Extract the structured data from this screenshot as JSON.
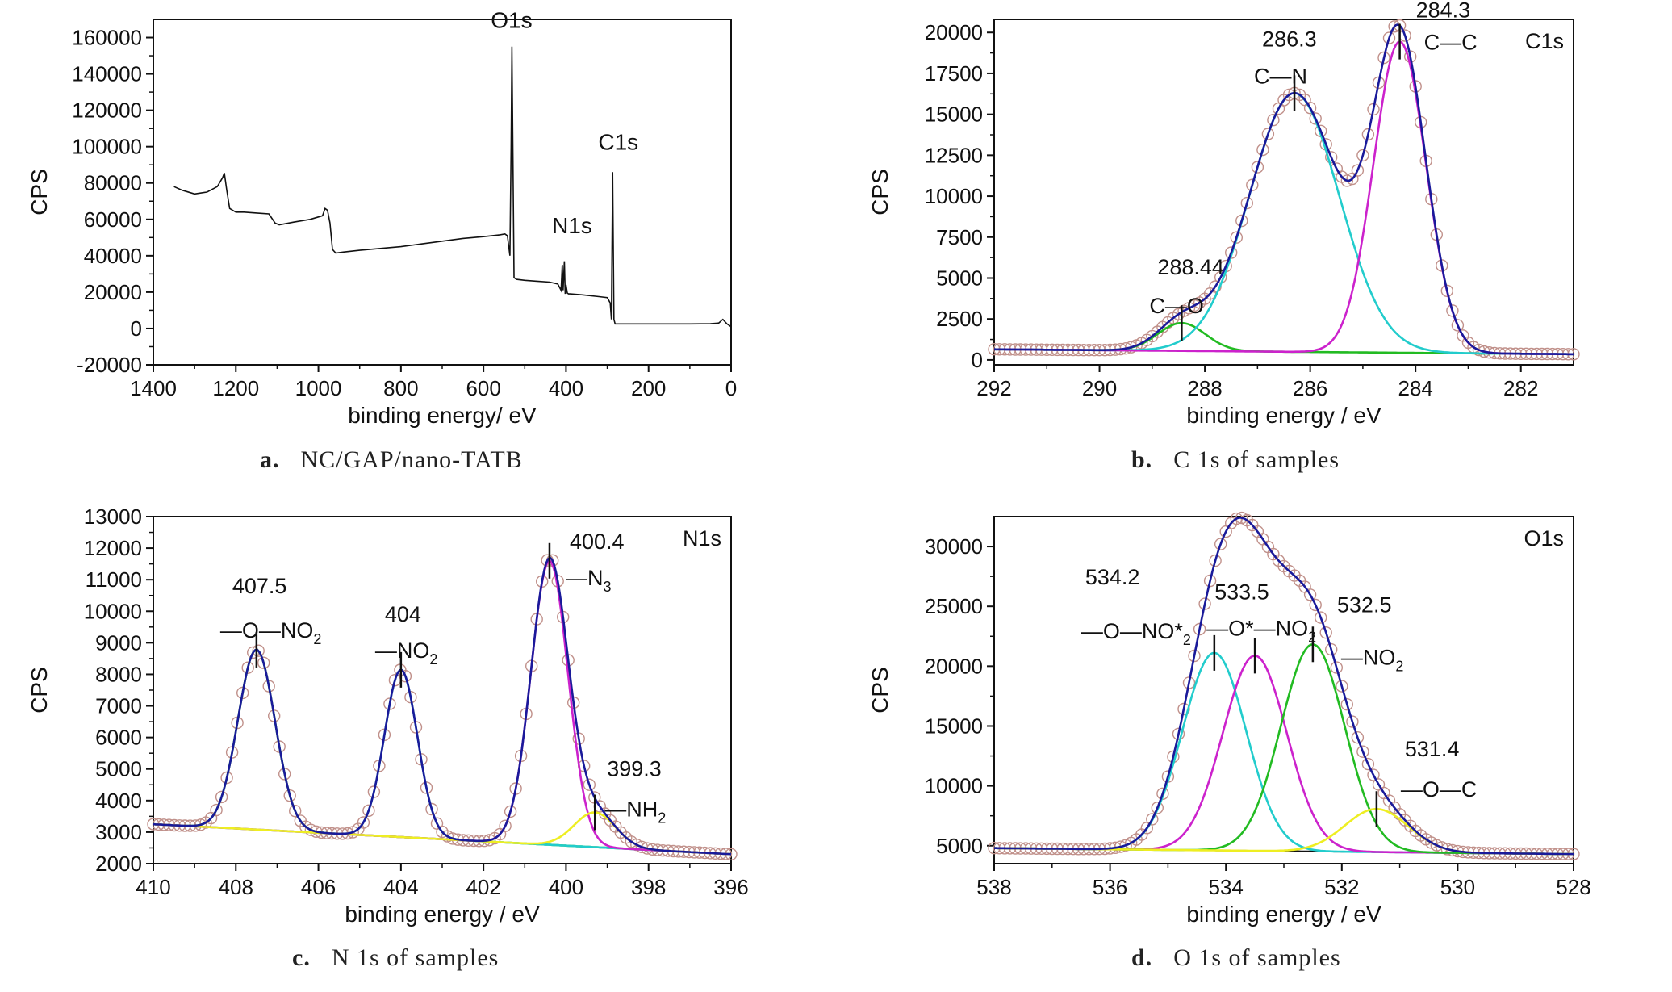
{
  "chart_data": [
    {
      "id": "a",
      "type": "line",
      "caption_letter": "a.",
      "caption_text": "NC/GAP/nano-TATB",
      "xlabel": "binding energy/ eV",
      "ylabel": "CPS",
      "xlim": [
        1400,
        0
      ],
      "ylim": [
        -20000,
        170000
      ],
      "xticks": [
        1400,
        1200,
        1000,
        800,
        600,
        400,
        200,
        0
      ],
      "yticks": [
        -20000,
        0,
        20000,
        40000,
        60000,
        80000,
        100000,
        120000,
        140000,
        160000
      ],
      "series": [
        {
          "color": "#111111",
          "x": [
            1350,
            1330,
            1300,
            1270,
            1245,
            1232,
            1228,
            1222,
            1215,
            1200,
            1180,
            1150,
            1120,
            1105,
            1095,
            1060,
            1020,
            990,
            984,
            978,
            972,
            966,
            958,
            940,
            900,
            850,
            800,
            750,
            700,
            650,
            600,
            560,
            548,
            542,
            536,
            533,
            531,
            526,
            520,
            500,
            470,
            440,
            420,
            412,
            409,
            407,
            404,
            402,
            400,
            397,
            394,
            390,
            360,
            320,
            300,
            293,
            290,
            287,
            284,
            281,
            270,
            250,
            200,
            150,
            100,
            50,
            30,
            20,
            10,
            0
          ],
          "y": [
            78000,
            76000,
            74000,
            75000,
            78000,
            83000,
            85500,
            76000,
            66000,
            64000,
            64000,
            63500,
            63000,
            58000,
            57000,
            58500,
            60000,
            62000,
            66000,
            65000,
            58000,
            43500,
            41500,
            42000,
            43000,
            44000,
            45000,
            46500,
            48000,
            49500,
            50500,
            51500,
            52000,
            51000,
            40000,
            100000,
            155000,
            28000,
            27000,
            26500,
            26000,
            25500,
            24500,
            21000,
            35000,
            21000,
            37000,
            19000,
            24000,
            19500,
            19000,
            19000,
            18500,
            17500,
            17000,
            14000,
            5000,
            86000,
            5000,
            2500,
            2500,
            2500,
            2500,
            2500,
            2500,
            2600,
            3000,
            5000,
            2500,
            1000
          ]
        }
      ],
      "annotations": [
        {
          "text": "O1s",
          "x": 532,
          "y": 160000
        },
        {
          "text": "N1s",
          "x": 397,
          "y": 48000
        },
        {
          "text": "C1s",
          "x": 285,
          "y": 93000
        }
      ]
    },
    {
      "id": "b",
      "type": "line",
      "caption_letter": "b.",
      "caption_text": "C 1s of samples",
      "panel_label": "C1s",
      "xlabel": "binding energy / eV",
      "ylabel": "CPS",
      "xlim": [
        292,
        281
      ],
      "ylim": [
        -300,
        20800
      ],
      "xticks": [
        292,
        290,
        288,
        286,
        284,
        282
      ],
      "yticks": [
        0,
        2500,
        5000,
        7500,
        10000,
        12500,
        15000,
        17500,
        20000
      ],
      "baseline": {
        "color": "#3a7a3a",
        "y_start": 650,
        "y_end": 350
      },
      "components": [
        {
          "name": "C—O",
          "center": 288.44,
          "height": 1700,
          "sigma": 0.45,
          "color": "#22bb22"
        },
        {
          "name": "C—N",
          "center": 286.3,
          "height": 15800,
          "sigma": 0.85,
          "color": "#22cccc"
        },
        {
          "name": "C—C",
          "center": 284.3,
          "height": 19000,
          "sigma": 0.5,
          "color": "#cc22cc"
        }
      ],
      "envelope_color": "#1a1a9a",
      "markers_color": "#c0908a",
      "peak_labels": [
        {
          "value": "288.44",
          "bond": "C—O"
        },
        {
          "value": "286.3",
          "bond": "C—N"
        },
        {
          "value": "284.3",
          "bond": "C—C"
        }
      ]
    },
    {
      "id": "c",
      "type": "line",
      "caption_letter": "c.",
      "caption_text": "N 1s of samples",
      "panel_label": "N1s",
      "xlabel": "binding energy / eV",
      "ylabel": "CPS",
      "xlim": [
        410,
        396
      ],
      "ylim": [
        2000,
        13000
      ],
      "xticks": [
        410,
        408,
        406,
        404,
        402,
        400,
        398,
        396
      ],
      "yticks": [
        2000,
        3000,
        4000,
        5000,
        6000,
        7000,
        8000,
        9000,
        10000,
        11000,
        12000,
        13000
      ],
      "baseline": {
        "color": "#bbbb22",
        "y_start": 3250,
        "y_end": 2300
      },
      "components": [
        {
          "name": "—O—NO2",
          "center": 407.5,
          "height": 5700,
          "sigma": 0.45,
          "color": "#22bb22"
        },
        {
          "name": "—NO2",
          "center": 404.0,
          "height": 5300,
          "sigma": 0.4,
          "color": "#22cccc"
        },
        {
          "name": "—N3",
          "center": 400.4,
          "height": 9000,
          "sigma": 0.45,
          "color": "#cc22cc"
        },
        {
          "name": "—NH2",
          "center": 399.3,
          "height": 1100,
          "sigma": 0.5,
          "color": "#eeee22"
        }
      ],
      "envelope_color": "#1a1a9a",
      "markers_color": "#c0908a",
      "peak_labels": [
        {
          "value": "407.5",
          "bond": "—O—NO",
          "sub": "2"
        },
        {
          "value": "404",
          "bond": "—NO",
          "sub": "2"
        },
        {
          "value": "400.4",
          "bond": "—N",
          "sub": "3"
        },
        {
          "value": "399.3",
          "bond": "—NH",
          "sub": "2"
        }
      ]
    },
    {
      "id": "d",
      "type": "line",
      "caption_letter": "d.",
      "caption_text": "O 1s of samples",
      "panel_label": "O1s",
      "xlabel": "binding energy / eV",
      "ylabel": "CPS",
      "xlim": [
        538,
        528
      ],
      "ylim": [
        3500,
        32500
      ],
      "xticks": [
        538,
        536,
        534,
        532,
        530,
        528
      ],
      "yticks": [
        5000,
        10000,
        15000,
        20000,
        25000,
        30000
      ],
      "baseline": {
        "color": "#111111",
        "y_start": 4800,
        "y_end": 4300
      },
      "components": [
        {
          "name": "—O—NO*2",
          "center": 534.2,
          "height": 16500,
          "sigma": 0.55,
          "color": "#22cccc"
        },
        {
          "name": "—O*—NO2",
          "center": 533.5,
          "height": 16300,
          "sigma": 0.55,
          "color": "#cc22cc"
        },
        {
          "name": "—NO2",
          "center": 532.5,
          "height": 17300,
          "sigma": 0.55,
          "color": "#22bb22"
        },
        {
          "name": "—O—C",
          "center": 531.4,
          "height": 3600,
          "sigma": 0.55,
          "color": "#eeee22"
        }
      ],
      "envelope_color": "#1a1a9a",
      "markers_color": "#c0908a",
      "peak_labels": [
        {
          "value": "534.2",
          "bond": "—O—NO*",
          "sub": "2"
        },
        {
          "value": "533.5",
          "bond": "—O*—NO",
          "sub": "2"
        },
        {
          "value": "532.5",
          "bond": "—NO",
          "sub": "2"
        },
        {
          "value": "531.4",
          "bond": "—O—C"
        }
      ]
    }
  ]
}
